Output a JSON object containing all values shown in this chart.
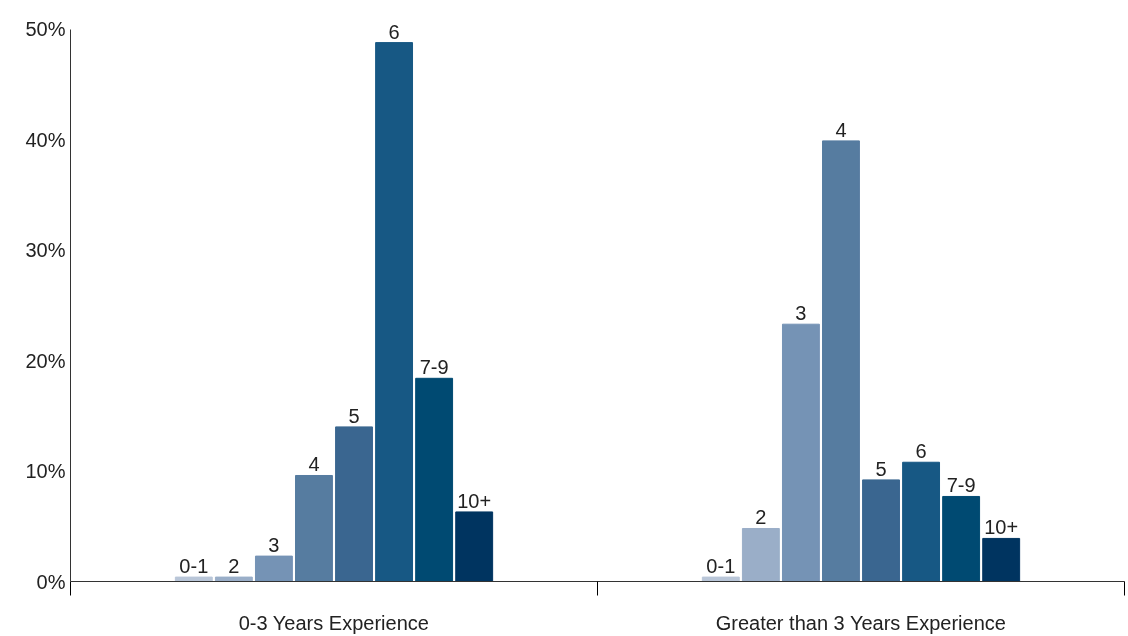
{
  "chart_data": {
    "type": "bar",
    "categories": [
      "0-3 Years Experience",
      "Greater than 3 Years Experience"
    ],
    "series": [
      {
        "name": "0-1",
        "color": "#b9c6d8",
        "values": [
          0.4,
          0.4
        ]
      },
      {
        "name": "2",
        "color": "#9aaec8",
        "values": [
          0.4,
          4.8
        ]
      },
      {
        "name": "3",
        "color": "#7593b5",
        "values": [
          2.3,
          23.3
        ]
      },
      {
        "name": "4",
        "color": "#567ca0",
        "values": [
          9.6,
          39.9
        ]
      },
      {
        "name": "5",
        "color": "#3a6690",
        "values": [
          14.0,
          9.2
        ]
      },
      {
        "name": "6",
        "color": "#175884",
        "values": [
          48.8,
          10.8
        ]
      },
      {
        "name": "7-9",
        "color": "#004a72",
        "values": [
          18.4,
          7.7
        ]
      },
      {
        "name": "10+",
        "color": "#003460",
        "values": [
          6.3,
          3.9
        ]
      }
    ],
    "ylim": [
      0,
      50
    ],
    "yticks": [
      {
        "value": 0,
        "label": "0%"
      },
      {
        "value": 10,
        "label": "10%"
      },
      {
        "value": 20,
        "label": "20%"
      },
      {
        "value": 30,
        "label": "30%"
      },
      {
        "value": 40,
        "label": "40%"
      },
      {
        "value": 50,
        "label": "50%"
      }
    ],
    "grid": false,
    "legend": false
  }
}
